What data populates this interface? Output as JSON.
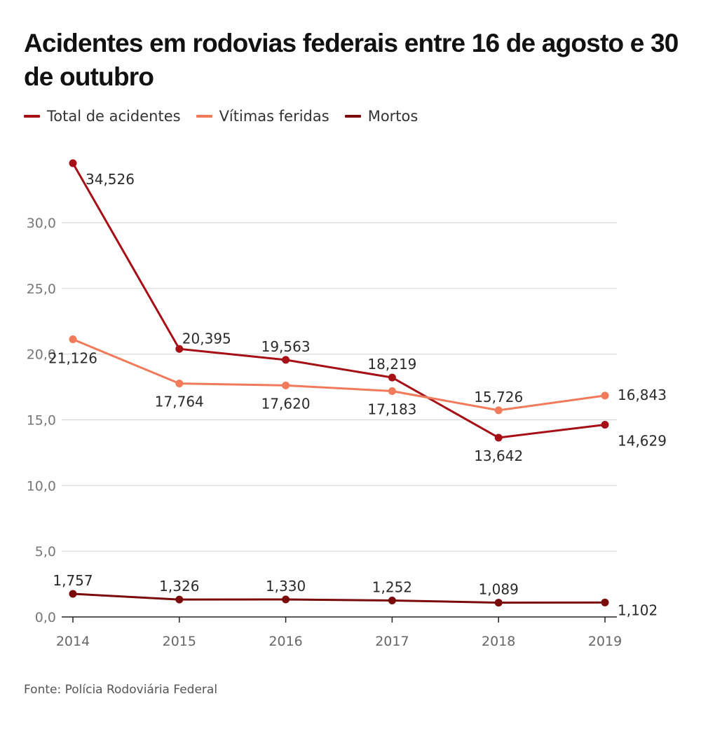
{
  "header": {
    "title": "Acidentes em rodovias federais entre 16 de agosto e 30 de outubro"
  },
  "footer": {
    "source": "Fonte: Polícia Rodoviária Federal"
  },
  "chart_data": {
    "type": "line",
    "title": "Acidentes em rodovias federais entre 16 de agosto e 30 de outubro",
    "xlabel": "",
    "ylabel": "",
    "x": [
      "2014",
      "2015",
      "2016",
      "2017",
      "2018",
      "2019"
    ],
    "ylim": [
      0,
      30
    ],
    "yticks": [
      0,
      5,
      10,
      15,
      20,
      25,
      30
    ],
    "ytick_labels": [
      "0,0",
      "5,0",
      "10,0",
      "15,0",
      "20,0",
      "25,0",
      "30,0"
    ],
    "grid": true,
    "legend_position": "top-left",
    "series": [
      {
        "name": "Total de acidentes",
        "color": "#a50f15",
        "values": [
          34.526,
          20.395,
          19.563,
          18.219,
          13.642,
          14.629
        ],
        "labels": [
          "34,526",
          "20,395",
          "19,563",
          "18,219",
          "13,642",
          "14,629"
        ],
        "label_pos": [
          "below-right",
          "above-right",
          "above",
          "above",
          "below",
          "below-right"
        ]
      },
      {
        "name": "Vítimas feridas",
        "color": "#f07a5a",
        "values": [
          21.126,
          17.764,
          17.62,
          17.183,
          15.726,
          16.843
        ],
        "labels": [
          "21,126",
          "17,764",
          "17,620",
          "17,183",
          "15,726",
          "16,843"
        ],
        "label_pos": [
          "below",
          "below",
          "below",
          "below",
          "above",
          "right"
        ]
      },
      {
        "name": "Mortos",
        "color": "#7a0a0a",
        "values": [
          1.757,
          1.326,
          1.33,
          1.252,
          1.089,
          1.102
        ],
        "labels": [
          "1,757",
          "1,326",
          "1,330",
          "1,252",
          "1,089",
          "1,102"
        ],
        "label_pos": [
          "above",
          "above",
          "above",
          "above",
          "above",
          "below-right"
        ]
      }
    ]
  }
}
